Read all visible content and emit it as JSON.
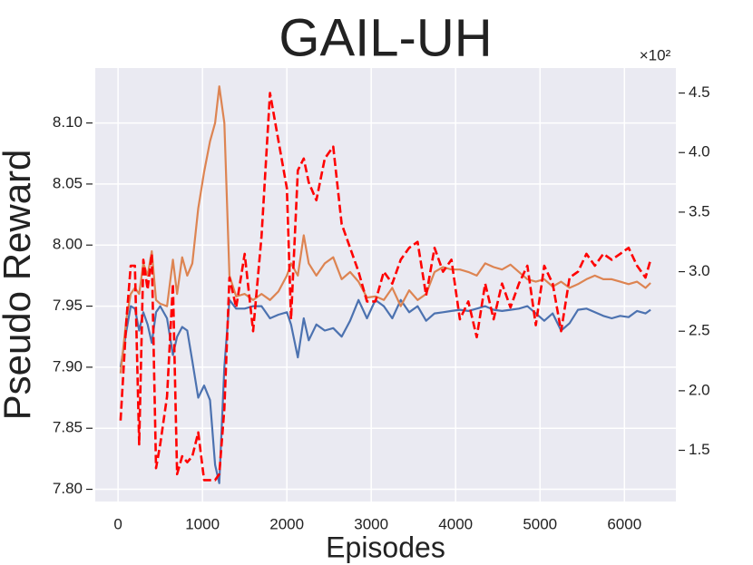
{
  "chart_data": {
    "type": "line",
    "title": "GAIL-UH",
    "xlabel": "Episodes",
    "ylabel": "Pseudo Reward",
    "y2_annotation": "×10²",
    "x": [
      30,
      100,
      150,
      200,
      250,
      300,
      350,
      400,
      450,
      500,
      580,
      650,
      700,
      760,
      820,
      880,
      950,
      1020,
      1090,
      1150,
      1200,
      1260,
      1320,
      1400,
      1500,
      1600,
      1700,
      1800,
      1900,
      2000,
      2050,
      2130,
      2200,
      2260,
      2350,
      2450,
      2550,
      2650,
      2750,
      2850,
      2950,
      3050,
      3150,
      3250,
      3350,
      3450,
      3550,
      3650,
      3750,
      3850,
      3950,
      4050,
      4150,
      4250,
      4350,
      4450,
      4550,
      4650,
      4750,
      4850,
      4950,
      5050,
      5150,
      5250,
      5350,
      5450,
      5550,
      5650,
      5750,
      5850,
      5950,
      6050,
      6150,
      6250,
      6310
    ],
    "series": [
      {
        "color": "#4c72b0",
        "values": [
          7.9,
          7.93,
          7.95,
          7.948,
          7.93,
          7.945,
          7.935,
          7.92,
          7.945,
          7.95,
          7.94,
          7.91,
          7.925,
          7.933,
          7.93,
          7.905,
          7.875,
          7.885,
          7.873,
          7.82,
          7.805,
          7.9,
          7.955,
          7.948,
          7.948,
          7.95,
          7.95,
          7.94,
          7.943,
          7.945,
          7.935,
          7.908,
          7.94,
          7.922,
          7.935,
          7.93,
          7.932,
          7.925,
          7.938,
          7.955,
          7.94,
          7.955,
          7.95,
          7.94,
          7.955,
          7.945,
          7.95,
          7.938,
          7.944,
          7.945,
          7.946,
          7.947,
          7.946,
          7.948,
          7.95,
          7.947,
          7.946,
          7.947,
          7.948,
          7.95,
          7.944,
          7.938,
          7.944,
          7.93,
          7.936,
          7.947,
          7.948,
          7.945,
          7.942,
          7.94,
          7.942,
          7.941,
          7.946,
          7.944,
          7.947
        ]
      },
      {
        "color": "#dd8452",
        "values": [
          7.895,
          7.94,
          7.96,
          7.965,
          7.96,
          7.985,
          7.975,
          7.995,
          7.955,
          7.952,
          7.95,
          7.988,
          7.96,
          7.99,
          7.975,
          7.985,
          8.03,
          8.06,
          8.085,
          8.1,
          8.13,
          8.1,
          7.975,
          7.958,
          7.96,
          7.955,
          7.96,
          7.955,
          7.962,
          7.975,
          7.985,
          7.975,
          8.008,
          7.985,
          7.975,
          7.985,
          7.99,
          7.972,
          7.978,
          7.97,
          7.957,
          7.958,
          7.955,
          7.965,
          7.95,
          7.963,
          7.955,
          7.96,
          7.978,
          7.982,
          7.98,
          7.98,
          7.978,
          7.975,
          7.985,
          7.982,
          7.98,
          7.984,
          7.978,
          7.972,
          7.97,
          7.972,
          7.966,
          7.97,
          7.965,
          7.968,
          7.972,
          7.975,
          7.972,
          7.972,
          7.97,
          7.968,
          7.97,
          7.965,
          7.969
        ]
      },
      {
        "color": "red",
        "dashed": true,
        "axis": "y2",
        "values": [
          1.75,
          2.6,
          3.05,
          3.05,
          1.55,
          3.1,
          2.85,
          3.15,
          1.35,
          1.55,
          1.95,
          2.9,
          1.3,
          1.45,
          1.4,
          1.45,
          1.65,
          1.25,
          1.25,
          1.25,
          1.3,
          1.85,
          2.95,
          2.7,
          3.15,
          2.5,
          3.3,
          4.5,
          4.1,
          3.7,
          2.6,
          3.85,
          3.95,
          3.75,
          3.6,
          3.95,
          4.05,
          3.4,
          3.2,
          3.0,
          2.75,
          2.75,
          3.0,
          2.9,
          3.1,
          3.2,
          3.25,
          2.8,
          3.2,
          3.0,
          3.1,
          2.6,
          2.75,
          2.45,
          2.9,
          2.6,
          2.9,
          2.7,
          2.9,
          3.05,
          2.55,
          3.05,
          2.9,
          2.5,
          2.95,
          3.0,
          3.15,
          3.05,
          3.15,
          3.1,
          3.15,
          3.2,
          3.05,
          2.95,
          3.1
        ]
      }
    ],
    "xlim": [
      -270,
      6610
    ],
    "xticks": [
      0,
      1000,
      2000,
      3000,
      4000,
      5000,
      6000
    ],
    "ylim": [
      7.79,
      8.145
    ],
    "yticks": [
      {
        "value": 7.8,
        "label": "7.80"
      },
      7.85,
      {
        "value": 7.9,
        "label": "7.90"
      },
      7.95,
      {
        "value": 8.0,
        "label": "8.00"
      },
      8.05,
      {
        "value": 8.1,
        "label": "8.10"
      }
    ],
    "y2lim": [
      1.07,
      4.71
    ],
    "y2ticks": [
      1.5,
      {
        "value": 2.0,
        "label": "2.0"
      },
      2.5,
      {
        "value": 3.0,
        "label": "3.0"
      },
      3.5,
      {
        "value": 4.0,
        "label": "4.0"
      },
      4.5
    ],
    "grid": true,
    "background": "#eaeaf2"
  }
}
